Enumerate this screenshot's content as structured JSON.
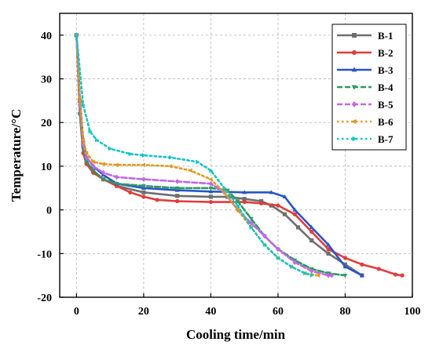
{
  "chart_data": {
    "type": "line",
    "xlabel": "Cooling time/min",
    "ylabel": "Temperature/°C",
    "xlim": [
      -5,
      100
    ],
    "ylim": [
      -20,
      45
    ],
    "x_ticks": [
      0,
      20,
      40,
      60,
      80,
      100
    ],
    "y_ticks": [
      -20,
      -10,
      0,
      10,
      20,
      30,
      40
    ],
    "grid": true,
    "legend_position": "top-right",
    "series": [
      {
        "name": "B-1",
        "color": "#6e6e6e",
        "style": "solid",
        "marker": "square",
        "points": [
          [
            0,
            40
          ],
          [
            1,
            25
          ],
          [
            2,
            15
          ],
          [
            3,
            11
          ],
          [
            5,
            9
          ],
          [
            8,
            7
          ],
          [
            12,
            5.5
          ],
          [
            20,
            4
          ],
          [
            30,
            3.2
          ],
          [
            40,
            3
          ],
          [
            45,
            3
          ],
          [
            50,
            2.5
          ],
          [
            55,
            2
          ],
          [
            58,
            1
          ],
          [
            62,
            -1
          ],
          [
            66,
            -4
          ],
          [
            70,
            -7
          ],
          [
            75,
            -10
          ],
          [
            80,
            -12.5
          ],
          [
            85,
            -15
          ]
        ]
      },
      {
        "name": "B-2",
        "color": "#e03c3c",
        "style": "solid",
        "marker": "circle",
        "points": [
          [
            0,
            40
          ],
          [
            1,
            22
          ],
          [
            2,
            13
          ],
          [
            3,
            10.5
          ],
          [
            5,
            8.5
          ],
          [
            8,
            7
          ],
          [
            12,
            5.5
          ],
          [
            16,
            4
          ],
          [
            20,
            3
          ],
          [
            24,
            2.3
          ],
          [
            30,
            2
          ],
          [
            40,
            1.8
          ],
          [
            50,
            1.8
          ],
          [
            55,
            1.5
          ],
          [
            60,
            1
          ],
          [
            65,
            -1
          ],
          [
            70,
            -5
          ],
          [
            75,
            -9
          ],
          [
            80,
            -11
          ],
          [
            85,
            -12.5
          ],
          [
            90,
            -13.5
          ],
          [
            95,
            -14.8
          ],
          [
            97,
            -15
          ]
        ]
      },
      {
        "name": "B-3",
        "color": "#2a55c5",
        "style": "solid",
        "marker": "triangle",
        "points": [
          [
            0,
            40
          ],
          [
            1,
            25
          ],
          [
            2,
            16
          ],
          [
            3,
            12
          ],
          [
            5,
            10
          ],
          [
            8,
            8
          ],
          [
            12,
            6
          ],
          [
            20,
            5
          ],
          [
            30,
            4.5
          ],
          [
            40,
            4.2
          ],
          [
            50,
            4
          ],
          [
            58,
            4
          ],
          [
            62,
            3
          ],
          [
            65,
            0
          ],
          [
            70,
            -4
          ],
          [
            75,
            -8
          ],
          [
            80,
            -13
          ],
          [
            85,
            -15
          ]
        ]
      },
      {
        "name": "B-4",
        "color": "#2e9a64",
        "style": "dashed",
        "marker": "triangle-down",
        "points": [
          [
            0,
            40
          ],
          [
            1,
            22
          ],
          [
            2,
            14
          ],
          [
            3,
            11
          ],
          [
            5,
            9
          ],
          [
            8,
            7
          ],
          [
            12,
            6
          ],
          [
            20,
            5.5
          ],
          [
            30,
            5
          ],
          [
            40,
            5
          ],
          [
            45,
            4.5
          ],
          [
            48,
            2
          ],
          [
            52,
            -2
          ],
          [
            56,
            -6
          ],
          [
            60,
            -9
          ],
          [
            65,
            -11.5
          ],
          [
            70,
            -13.5
          ],
          [
            75,
            -14.5
          ],
          [
            80,
            -15
          ]
        ]
      },
      {
        "name": "B-5",
        "color": "#c06ae0",
        "style": "dashed",
        "marker": "diamond",
        "points": [
          [
            0,
            40
          ],
          [
            1,
            24
          ],
          [
            2,
            15
          ],
          [
            3,
            12
          ],
          [
            5,
            10
          ],
          [
            8,
            8.5
          ],
          [
            12,
            7.5
          ],
          [
            20,
            7
          ],
          [
            30,
            6.5
          ],
          [
            40,
            6
          ],
          [
            44,
            4
          ],
          [
            48,
            0
          ],
          [
            52,
            -3
          ],
          [
            56,
            -6
          ],
          [
            60,
            -9
          ],
          [
            65,
            -12
          ],
          [
            70,
            -14
          ],
          [
            75,
            -15
          ],
          [
            76,
            -15
          ]
        ]
      },
      {
        "name": "B-6",
        "color": "#e09a1e",
        "style": "dotted",
        "marker": "triangle-left",
        "points": [
          [
            0,
            40
          ],
          [
            1,
            25
          ],
          [
            2,
            16
          ],
          [
            3,
            13
          ],
          [
            5,
            11
          ],
          [
            8,
            10.5
          ],
          [
            12,
            10.3
          ],
          [
            20,
            10.3
          ],
          [
            28,
            10
          ],
          [
            34,
            9
          ],
          [
            40,
            7
          ],
          [
            44,
            4
          ],
          [
            48,
            0
          ],
          [
            52,
            -4
          ],
          [
            56,
            -8
          ],
          [
            60,
            -11
          ],
          [
            64,
            -13
          ],
          [
            68,
            -14.5
          ],
          [
            72,
            -15
          ]
        ]
      },
      {
        "name": "B-7",
        "color": "#18c4c4",
        "style": "dotted",
        "marker": "triangle-right",
        "points": [
          [
            0,
            40
          ],
          [
            2,
            24
          ],
          [
            4,
            18
          ],
          [
            6,
            16
          ],
          [
            10,
            14
          ],
          [
            16,
            12.8
          ],
          [
            20,
            12.5
          ],
          [
            28,
            12
          ],
          [
            36,
            11
          ],
          [
            40,
            9
          ],
          [
            44,
            5
          ],
          [
            48,
            1
          ],
          [
            52,
            -4
          ],
          [
            56,
            -8
          ],
          [
            60,
            -11
          ],
          [
            64,
            -13
          ],
          [
            68,
            -14.5
          ],
          [
            70,
            -15
          ]
        ]
      }
    ]
  }
}
